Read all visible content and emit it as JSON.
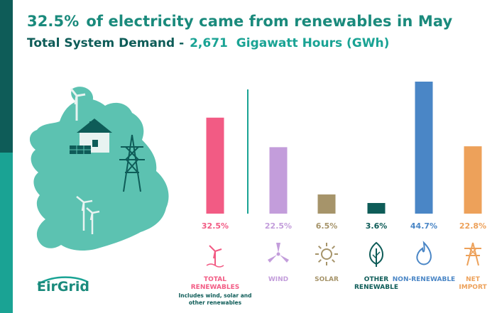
{
  "header": {
    "headline_pct": "32.5%",
    "headline_text": "of electricity came from renewables in May",
    "subtitle_label": "Total System Demand -",
    "subtitle_value": "2,671",
    "subtitle_unit": "Gigawatt Hours (GWh)"
  },
  "logo": {
    "text": "EirGrid"
  },
  "colors": {
    "sidebar_top": "#0e5c58",
    "sidebar_bottom": "#1aa394",
    "map": "#5cc2b1",
    "total": "#f25b84",
    "wind": "#c39ddb",
    "solar": "#a6946a",
    "other": "#0e5c58",
    "nonrenew": "#4a86c6",
    "import": "#eda15a"
  },
  "chart_data": {
    "type": "bar",
    "title": "32.5% of electricity came from renewables in May",
    "subtitle": "Total System Demand - 2,671 Gigawatt Hours (GWh)",
    "categories": [
      "TOTAL RENEWABLES",
      "WIND",
      "SOLAR",
      "OTHER RENEWABLE",
      "NON-RENEWABLE",
      "NET IMPORT"
    ],
    "values": [
      32.5,
      22.5,
      6.5,
      3.6,
      44.7,
      22.8
    ],
    "value_labels": [
      "32.5%",
      "22.5%",
      "6.5%",
      "3.6%",
      "44.7%",
      "22.8%"
    ],
    "ylim": [
      0,
      44.7
    ],
    "grid": false,
    "note": "Includes wind, solar and other renewables"
  },
  "categories": [
    {
      "label_line1": "TOTAL",
      "label_line2": "RENEWABLES",
      "icon": "wind-turbine-icon",
      "color": "#f25b84"
    },
    {
      "label_line1": "WIND",
      "label_line2": "",
      "icon": "propeller-icon",
      "color": "#c39ddb"
    },
    {
      "label_line1": "SOLAR",
      "label_line2": "",
      "icon": "sun-icon",
      "color": "#a6946a"
    },
    {
      "label_line1": "OTHER",
      "label_line2": "RENEWABLE",
      "icon": "leaf-icon",
      "color": "#0e5c58"
    },
    {
      "label_line1": "NON-RENEWABLE",
      "label_line2": "",
      "icon": "flame-icon",
      "color": "#4a86c6"
    },
    {
      "label_line1": "NET",
      "label_line2": "IMPORT",
      "icon": "pylon-icon",
      "color": "#eda15a"
    }
  ],
  "total_note": [
    "Includes wind, solar and",
    "other renewables"
  ]
}
